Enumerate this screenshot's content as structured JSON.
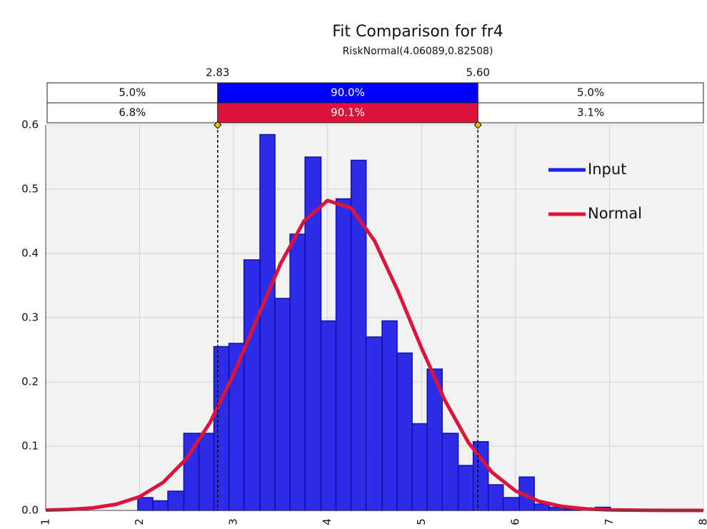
{
  "chart_data": {
    "type": "histogram",
    "title": "Fit Comparison for fr4",
    "subtitle": "RiskNormal(4.06089,0.82508)",
    "bins": [
      1.98,
      2.14,
      2.3,
      2.47,
      2.63,
      2.79,
      2.95,
      3.11,
      3.28,
      3.44,
      3.6,
      3.76,
      3.93,
      4.09,
      4.25,
      4.41,
      4.58,
      4.74,
      4.9,
      5.06,
      5.22,
      5.39,
      5.55,
      5.71,
      5.87,
      6.04,
      6.2,
      6.36,
      6.52,
      6.69,
      6.85,
      7.01
    ],
    "counts": [
      0.02,
      0.015,
      0.03,
      0.12,
      0.12,
      0.255,
      0.26,
      0.39,
      0.585,
      0.33,
      0.43,
      0.55,
      0.295,
      0.485,
      0.545,
      0.27,
      0.295,
      0.245,
      0.135,
      0.22,
      0.12,
      0.07,
      0.107,
      0.04,
      0.02,
      0.052,
      0.01,
      0.005,
      0.002,
      0,
      0.005
    ],
    "color": "#1c1ce6",
    "xlim": [
      1,
      8
    ],
    "ylim": [
      0,
      0.6
    ],
    "xticks": [
      1,
      2,
      3,
      4,
      5,
      6,
      7,
      8
    ],
    "yticks": [
      {
        "value": 0,
        "label": "0.0"
      },
      0.1,
      0.2,
      0.3,
      0.4,
      0.5,
      0.6
    ],
    "grid": true,
    "legend": "upper right",
    "series": [
      {
        "name": "Input",
        "color": "#2020ee"
      },
      {
        "name": "Normal",
        "color": "#dc143c",
        "x": [
          1,
          1.25,
          1.5,
          1.75,
          2,
          2.25,
          2.5,
          2.75,
          3,
          3.25,
          3.5,
          3.75,
          4,
          4.25,
          4.5,
          4.75,
          5,
          5.25,
          5.5,
          5.75,
          6,
          6.25,
          6.5,
          6.75,
          7,
          7.5,
          8
        ],
        "values": [
          0.0005,
          0.0015,
          0.0039,
          0.0096,
          0.0214,
          0.0436,
          0.0809,
          0.1371,
          0.2118,
          0.2987,
          0.3841,
          0.4506,
          0.4823,
          0.4709,
          0.4196,
          0.3409,
          0.2527,
          0.1709,
          0.1054,
          0.0593,
          0.0305,
          0.0143,
          0.0061,
          0.0024,
          0.0008,
          0.0001,
          0
        ]
      }
    ],
    "delimiters": [
      {
        "value": 2.83,
        "label": "2.83"
      },
      {
        "value": 5.6,
        "label": "5.60"
      }
    ],
    "bands": [
      {
        "color": "#0000ff",
        "values": [
          5.0,
          90.0,
          5.0
        ],
        "value_labels": [
          "5.0%",
          "90.0%",
          "5.0%"
        ]
      },
      {
        "color": "#dc143c",
        "values": [
          6.8,
          90.1,
          3.1
        ],
        "value_labels": [
          "6.8%",
          "90.1%",
          "3.1%"
        ]
      }
    ]
  }
}
